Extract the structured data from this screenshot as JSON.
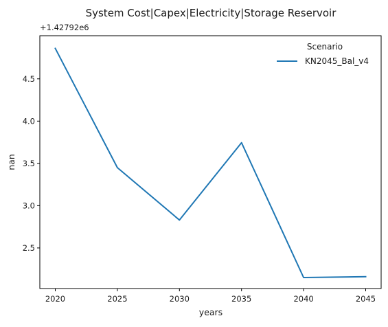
{
  "chart_data": {
    "type": "line",
    "title": "System Cost|Capex|Electricity|Storage Reservoir",
    "xlabel": "years",
    "ylabel": "nan",
    "y_offset_text": "+1.42792e6",
    "x": [
      2020,
      2025,
      2030,
      2035,
      2040,
      2045
    ],
    "x_ticks": [
      "2020",
      "2025",
      "2030",
      "2035",
      "2040",
      "2045"
    ],
    "y_ticks": [
      "2.5",
      "3.0",
      "3.5",
      "4.0",
      "4.5"
    ],
    "ylim": [
      2.02,
      5.01
    ],
    "series": [
      {
        "name": "KN2045_Bal_v4",
        "values": [
          4.86,
          3.45,
          2.83,
          3.745,
          2.15,
          2.16
        ],
        "color": "#1f77b4"
      }
    ],
    "legend": {
      "title": "Scenario",
      "placement": "top-right"
    },
    "grid": false
  }
}
